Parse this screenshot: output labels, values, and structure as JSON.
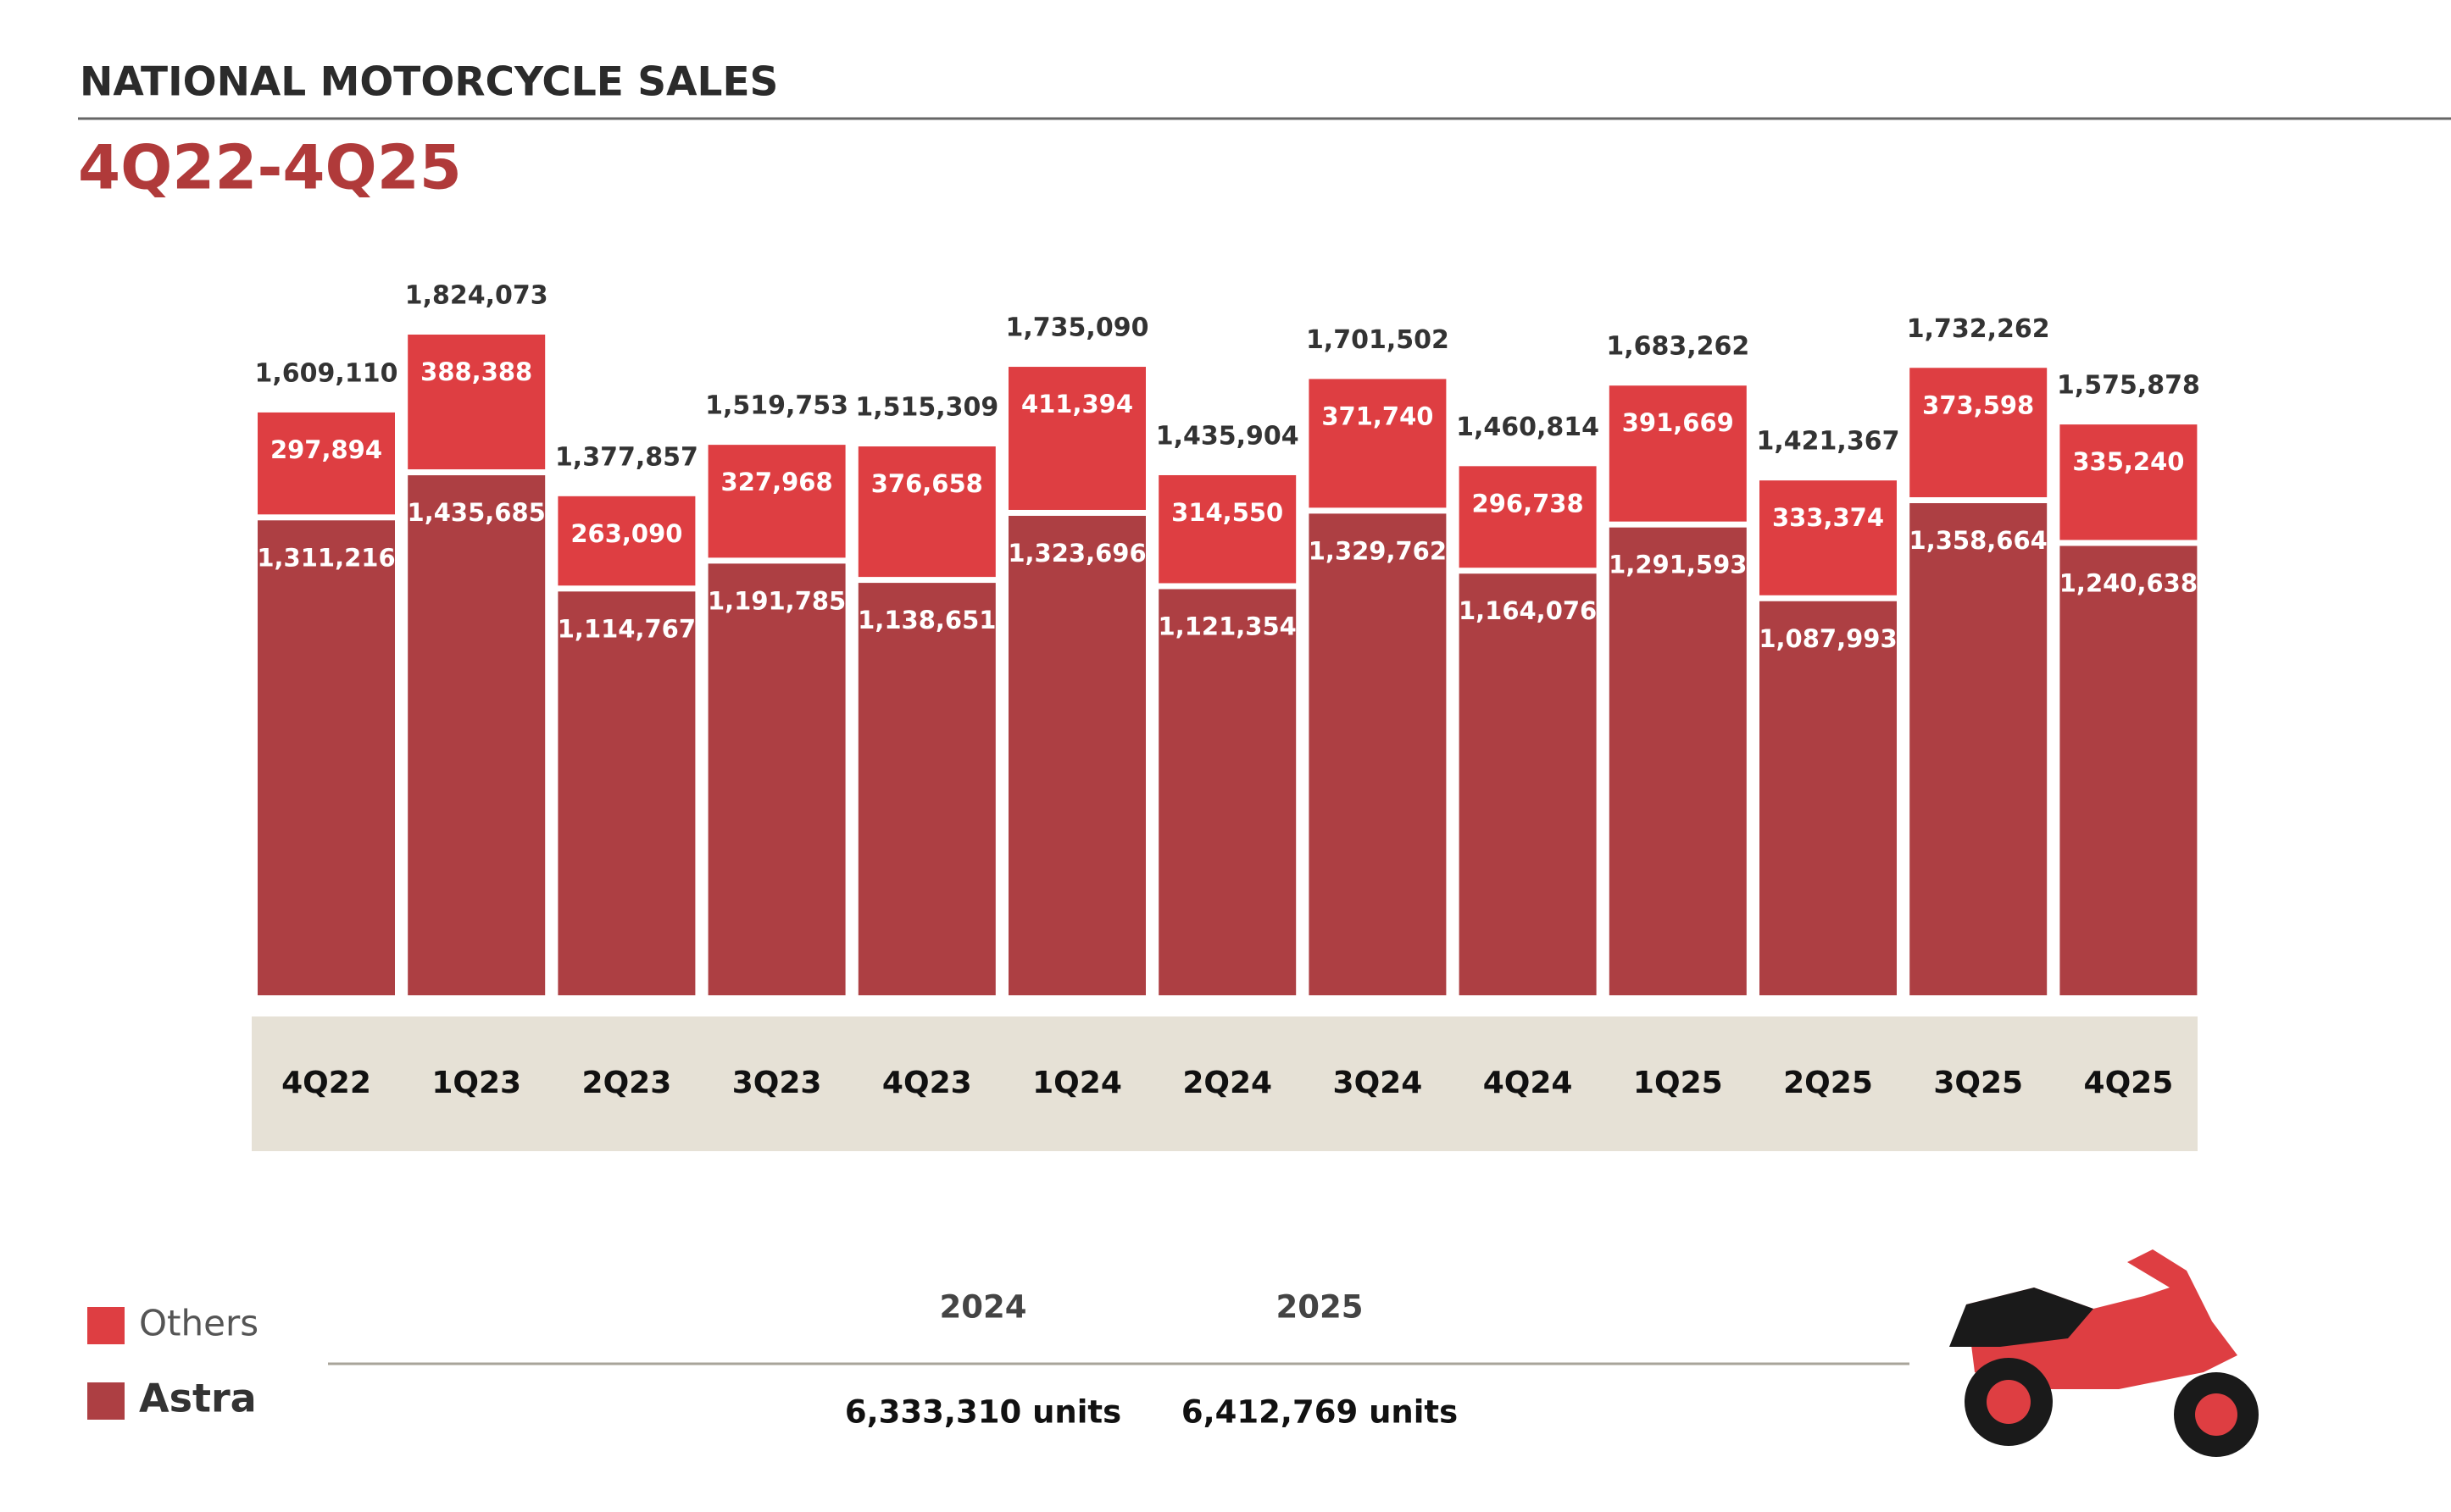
{
  "chart_data": {
    "type": "stacked_bar",
    "title": "NATIONAL MOTORCYCLE SALES",
    "subtitle": "4Q22-4Q25",
    "categories": [
      "4Q22",
      "1Q23",
      "2Q23",
      "3Q23",
      "4Q23",
      "1Q24",
      "2Q24",
      "3Q24",
      "4Q24",
      "1Q25",
      "2Q25",
      "3Q25",
      "4Q25"
    ],
    "series": [
      {
        "name": "Astra",
        "color": "#ad3f43",
        "values": [
          1311216,
          1435685,
          1114767,
          1191785,
          1138651,
          1323696,
          1121354,
          1329762,
          1164076,
          1291593,
          1087993,
          1358664,
          1240638
        ],
        "value_labels": [
          "1,311,216",
          "1,435,685",
          "1,114,767",
          "1,191,785",
          "1,138,651",
          "1,323,696",
          "1,121,354",
          "1,329,762",
          "1,164,076",
          "1,291,593",
          "1,087,993",
          "1,358,664",
          "1,240,638"
        ]
      },
      {
        "name": "Others",
        "color": "#de3e42",
        "values": [
          297894,
          388388,
          263090,
          327968,
          376658,
          411394,
          314550,
          371740,
          296738,
          391669,
          333374,
          373598,
          335240
        ],
        "value_labels": [
          "297,894",
          "388,388",
          "263,090",
          "327,968",
          "376,658",
          "411,394",
          "314,550",
          "371,740",
          "296,738",
          "391,669",
          "333,374",
          "373,598",
          "335,240"
        ]
      }
    ],
    "totals": [
      1609110,
      1824073,
      1377857,
      1519753,
      1515309,
      1735090,
      1435904,
      1701502,
      1460814,
      1683262,
      1421367,
      1732262,
      1575878
    ],
    "total_labels": [
      "1,609,110",
      "1,824,073",
      "1,377,857",
      "1,519,753",
      "1,515,309",
      "1,735,090",
      "1,435,904",
      "1,701,502",
      "1,460,814",
      "1,683,262",
      "1,421,367",
      "1,732,262",
      "1,575,878"
    ],
    "summary": [
      {
        "year": "2024",
        "total": "6,333,310 units"
      },
      {
        "year": "2025",
        "total": "6,412,769 units"
      }
    ]
  }
}
